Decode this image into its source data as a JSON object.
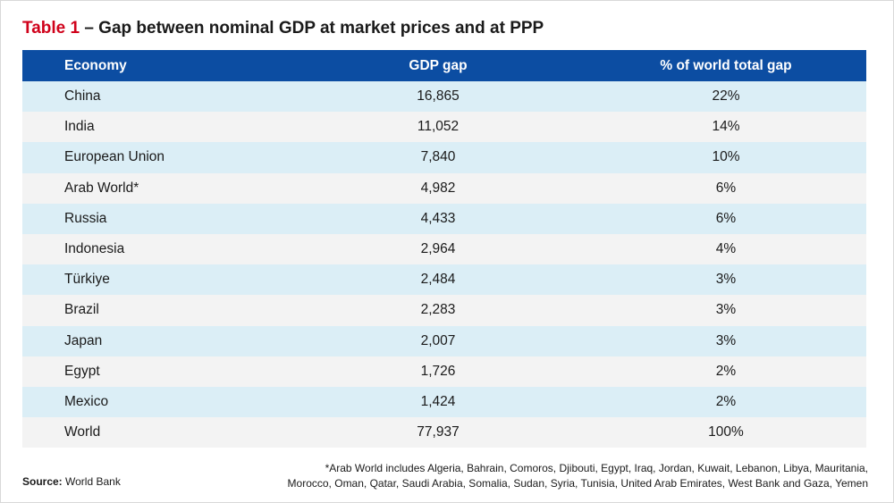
{
  "title": {
    "number": "Table 1",
    "text": " – Gap between nominal GDP at market prices and at PPP"
  },
  "table": {
    "headers": {
      "economy": "Economy",
      "gap": "GDP gap",
      "pct": "% of world total gap"
    },
    "rows": [
      {
        "economy": "China",
        "gap": "16,865",
        "pct": "22%"
      },
      {
        "economy": "India",
        "gap": "11,052",
        "pct": "14%"
      },
      {
        "economy": "European Union",
        "gap": "7,840",
        "pct": "10%"
      },
      {
        "economy": "Arab World*",
        "gap": "4,982",
        "pct": "6%"
      },
      {
        "economy": "Russia",
        "gap": "4,433",
        "pct": "6%"
      },
      {
        "economy": "Indonesia",
        "gap": "2,964",
        "pct": "4%"
      },
      {
        "economy": "Türkiye",
        "gap": "2,484",
        "pct": "3%"
      },
      {
        "economy": "Brazil",
        "gap": "2,283",
        "pct": "3%"
      },
      {
        "economy": "Japan",
        "gap": "2,007",
        "pct": "3%"
      },
      {
        "economy": "Egypt",
        "gap": "1,726",
        "pct": "2%"
      },
      {
        "economy": "Mexico",
        "gap": "1,424",
        "pct": "2%"
      },
      {
        "economy": "World",
        "gap": "77,937",
        "pct": "100%"
      }
    ]
  },
  "source": {
    "label": "Source:",
    "value": " World Bank"
  },
  "footnote": {
    "line1": "*Arab World includes Algeria, Bahrain, Comoros, Djibouti, Egypt, Iraq, Jordan, Kuwait, Lebanon, Libya, Mauritania,",
    "line2": "Morocco, Oman, Qatar, Saudi Arabia, Somalia, Sudan, Syria, Tunisia, United Arab Emirates, West Bank and Gaza, Yemen"
  },
  "colors": {
    "header_bg": "#0c4da2",
    "row_light": "#dbeef6",
    "row_grey": "#f3f3f3",
    "title_accent": "#d0021b"
  }
}
